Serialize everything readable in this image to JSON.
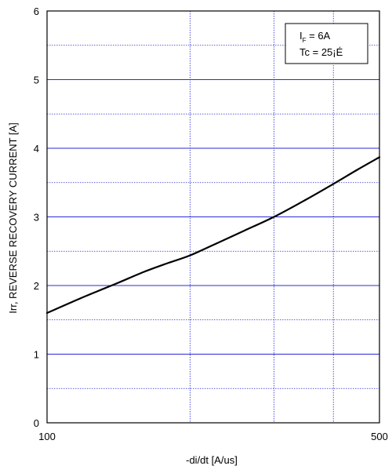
{
  "chart_data": {
    "type": "line",
    "title": "",
    "xlabel": "-di/dt [A/us]",
    "ylabel": "Irr, REVERSE RECOVERY CURRENT [A]",
    "x_scale": "log",
    "xlim": [
      100,
      500
    ],
    "ylim": [
      0,
      6
    ],
    "x_tick_labels": [
      {
        "value": 100,
        "label": "100"
      },
      {
        "value": 500,
        "label": "500"
      }
    ],
    "y_tick_labels": [
      {
        "value": 0,
        "label": "0"
      },
      {
        "value": 1,
        "label": "1"
      },
      {
        "value": 2,
        "label": "2"
      },
      {
        "value": 3,
        "label": "3"
      },
      {
        "value": 4,
        "label": "4"
      },
      {
        "value": 5,
        "label": "5"
      },
      {
        "value": 6,
        "label": "6"
      }
    ],
    "x_grid_major": [
      200,
      300,
      400
    ],
    "y_grid_major": [
      1,
      2,
      3,
      4,
      5
    ],
    "y_grid_minor": [
      0.5,
      1.5,
      2.5,
      3.5,
      4.5,
      5.5
    ],
    "grid": true,
    "legend_position": "top-right",
    "legend": {
      "line1_main": "I",
      "line1_sub": "F",
      "line1_rest": " = 6A",
      "line2": "Tc = 25¡É"
    },
    "series": [
      {
        "x": [
          100,
          120,
          140,
          160,
          180,
          200,
          230,
          260,
          300,
          350,
          400,
          450,
          500
        ],
        "y": [
          1.6,
          1.84,
          2.03,
          2.2,
          2.33,
          2.44,
          2.63,
          2.8,
          3.0,
          3.25,
          3.48,
          3.69,
          3.87
        ]
      }
    ],
    "colors": {
      "line": "#000000",
      "grid": "#2b2bd4",
      "frame": "#000000"
    }
  }
}
